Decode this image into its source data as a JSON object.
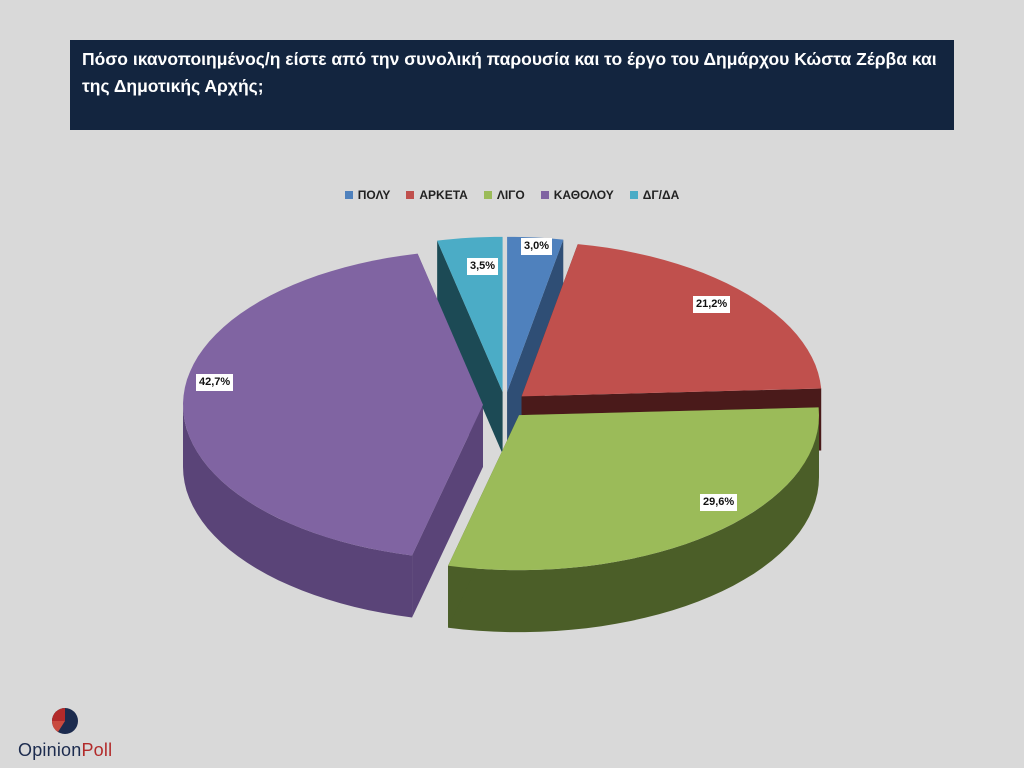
{
  "title": "Πόσο ικανοποιημένος/η είστε από την συνολική παρουσία και το έργο του Δημάρχου Κώστα Ζέρβα και της Δημοτικής Αρχής;",
  "brand": {
    "name_part1": "Opinion",
    "name_part2": "Poll"
  },
  "chart_data": {
    "type": "pie",
    "title": "Πόσο ικανοποιημένος/η είστε από την συνολική παρουσία και το έργο του Δημάρχου Κώστα Ζέρβα και της Δημοτικής Αρχής;",
    "legend_position": "top-center",
    "slices": [
      {
        "label": "ΠΟΛΥ",
        "value": 3.0,
        "display": "3,0%",
        "color": "#4f81bd",
        "side": "#2f4e75"
      },
      {
        "label": "ΑΡΚΕΤΑ",
        "value": 21.2,
        "display": "21,2%",
        "color": "#c0504d",
        "side": "#4a1a1a"
      },
      {
        "label": "ΛΙΓΟ",
        "value": 29.6,
        "display": "29,6%",
        "color": "#9bbb59",
        "side": "#4b5e28"
      },
      {
        "label": "ΚΑΘΟΛΟΥ",
        "value": 42.7,
        "display": "42,7%",
        "color": "#8064a2",
        "side": "#5a4478"
      },
      {
        "label": "ΔΓ/ΔΑ",
        "value": 3.5,
        "display": "3,5%",
        "color": "#4bacc6",
        "side": "#1c4a55"
      }
    ]
  }
}
